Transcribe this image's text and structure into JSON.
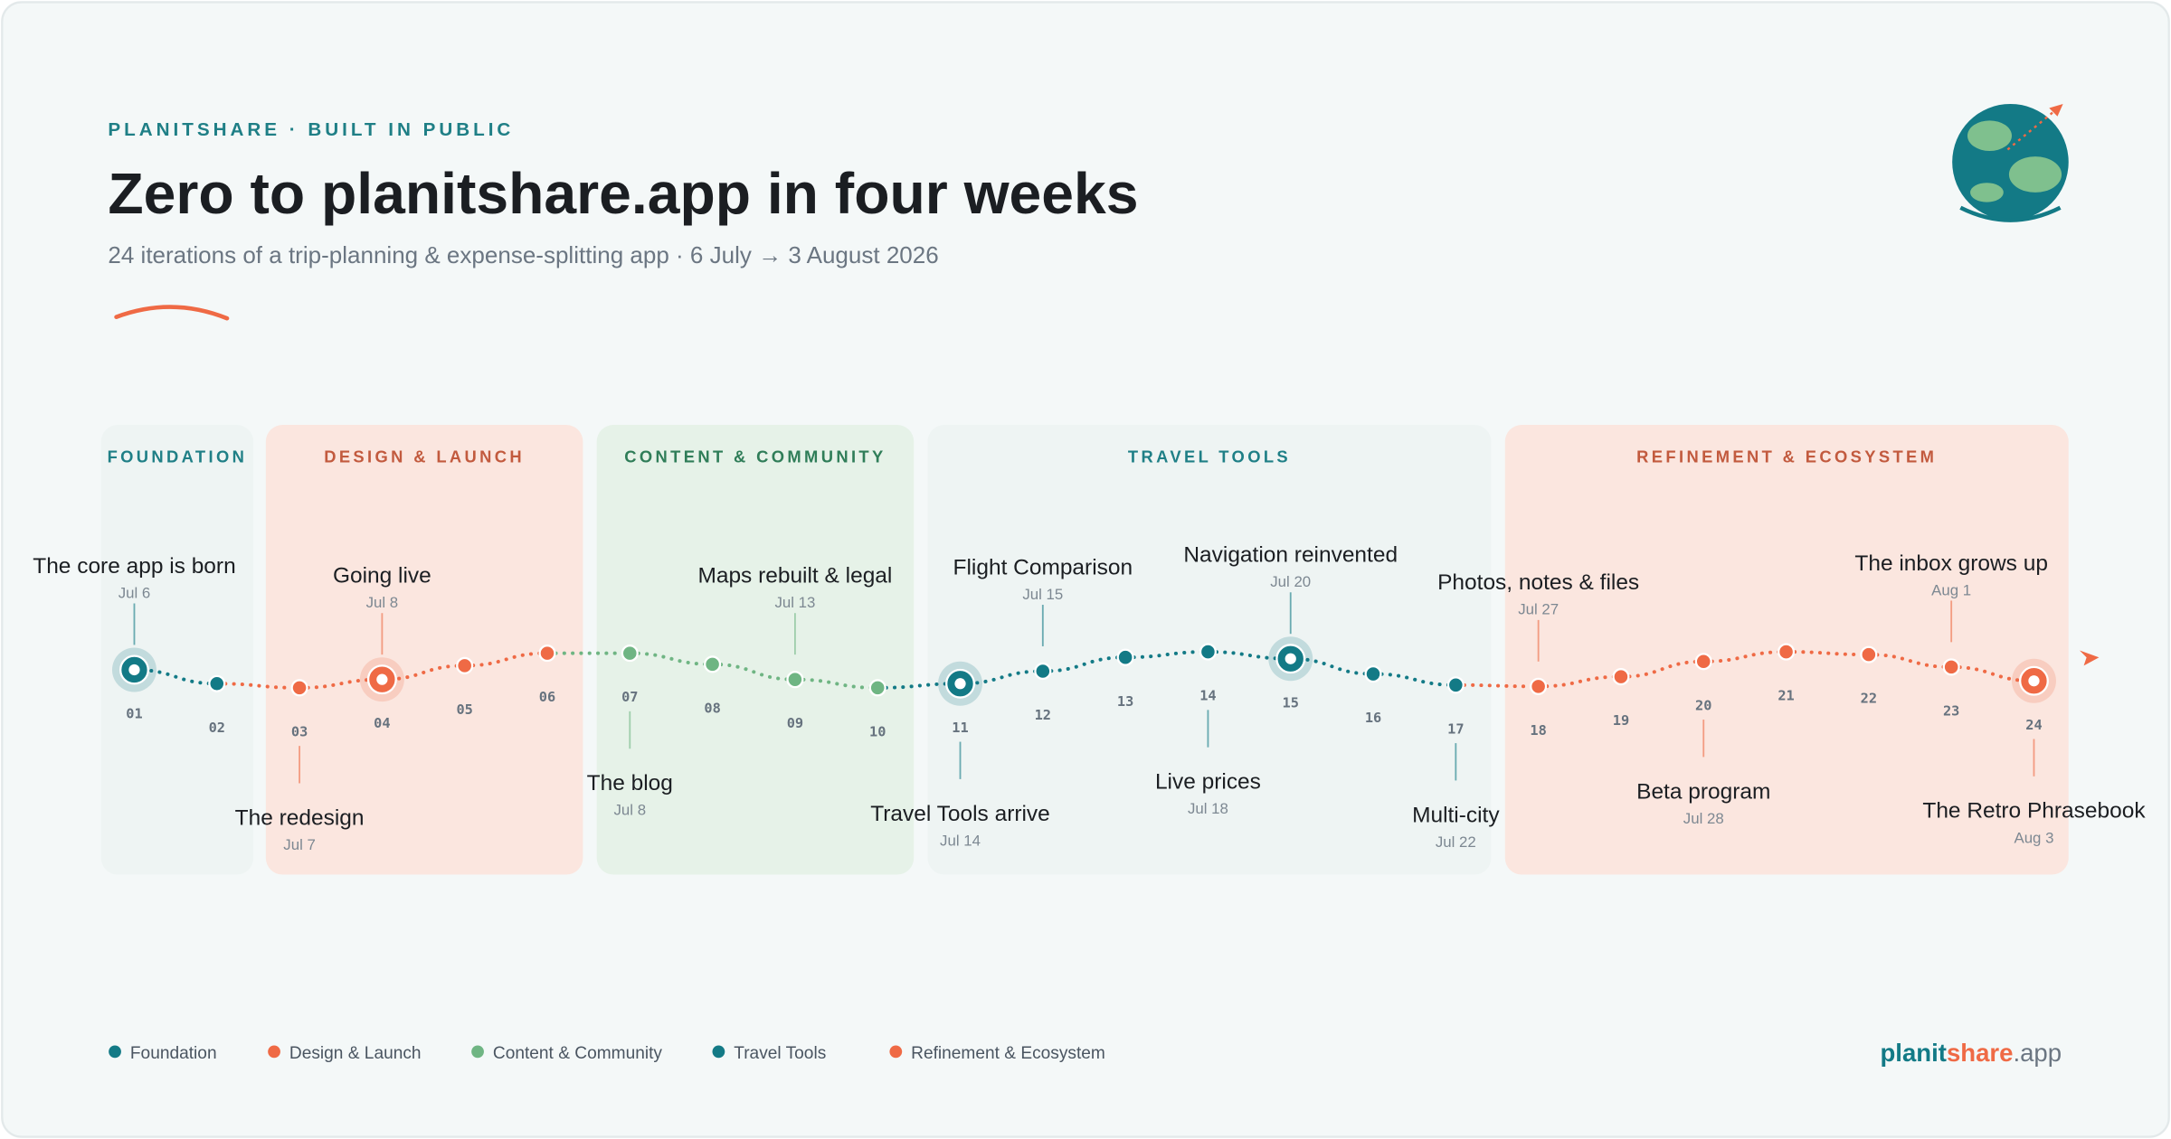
{
  "header": {
    "eyebrow": "PLANITSHARE · BUILT IN PUBLIC",
    "title": "Zero to planitshare.app in four weeks",
    "subtitle": "24 iterations of a trip-planning & expense-splitting app · 6 July → 3 August 2026"
  },
  "phases": [
    {
      "label": "FOUNDATION",
      "color": "#137a86",
      "label_color": "#1f7f86",
      "background": "#eef4f3"
    },
    {
      "label": "DESIGN & LAUNCH",
      "color": "#ef6a45",
      "label_color": "#c25a3e",
      "background": "#fbe6df"
    },
    {
      "label": "CONTENT & COMMUNITY",
      "color": "#6fb583",
      "label_color": "#2f7d58",
      "background": "#e6f2e8"
    },
    {
      "label": "TRAVEL TOOLS",
      "color": "#137a86",
      "label_color": "#1f7f86",
      "background": "#eef4f3"
    },
    {
      "label": "REFINEMENT & ECOSYSTEM",
      "color": "#ef6a45",
      "label_color": "#c25a3e",
      "background": "#fbe6df"
    }
  ],
  "milestones": [
    {
      "number": "01",
      "title": "The core app is born",
      "date": "Jul 6"
    },
    {
      "number": "02"
    },
    {
      "number": "03",
      "title": "The redesign",
      "date": "Jul 7"
    },
    {
      "number": "04",
      "title": "Going live",
      "date": "Jul 8"
    },
    {
      "number": "05"
    },
    {
      "number": "06"
    },
    {
      "number": "07",
      "title": "The blog",
      "date": "Jul 8"
    },
    {
      "number": "08"
    },
    {
      "number": "09",
      "title": "Maps rebuilt & legal",
      "date": "Jul 13"
    },
    {
      "number": "10"
    },
    {
      "number": "11",
      "title": "Travel Tools arrive",
      "date": "Jul 14"
    },
    {
      "number": "12",
      "title": "Flight Comparison",
      "date": "Jul 15"
    },
    {
      "number": "13"
    },
    {
      "number": "14",
      "title": "Live prices",
      "date": "Jul 18"
    },
    {
      "number": "15",
      "title": "Navigation reinvented",
      "date": "Jul 20"
    },
    {
      "number": "16"
    },
    {
      "number": "17",
      "title": "Multi-city",
      "date": "Jul 22"
    },
    {
      "number": "18",
      "title": "Photos, notes & files",
      "date": "Jul 27"
    },
    {
      "number": "19"
    },
    {
      "number": "20",
      "title": "Beta program",
      "date": "Jul 28"
    },
    {
      "number": "21"
    },
    {
      "number": "22"
    },
    {
      "number": "23",
      "title": "The inbox grows up",
      "date": "Aug 1"
    },
    {
      "number": "24",
      "title": "The Retro Phrasebook",
      "date": "Aug 3"
    }
  ],
  "legend": [
    {
      "label": "Foundation",
      "color": "#137a86"
    },
    {
      "label": "Design & Launch",
      "color": "#ef6a45"
    },
    {
      "label": "Content & Community",
      "color": "#6fb583"
    },
    {
      "label": "Travel Tools",
      "color": "#137a86"
    },
    {
      "label": "Refinement & Ecosystem",
      "color": "#ef6a45"
    }
  ],
  "brand": {
    "parts": [
      "planit",
      "share",
      ".app"
    ]
  }
}
